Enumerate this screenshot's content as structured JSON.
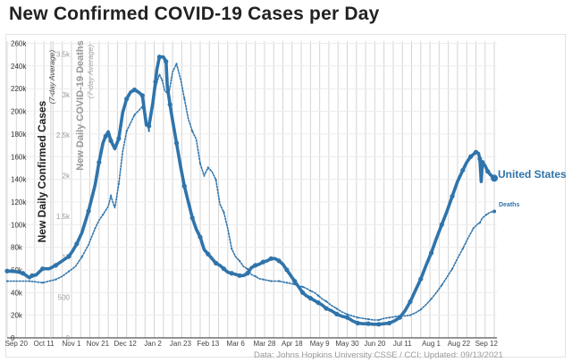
{
  "page": {
    "title": "New Confirmed COVID-19 Cases per Day"
  },
  "chart_data": {
    "type": "line",
    "ylabel_cases": "New Daily Confirmed Cases",
    "ylabel_cases_sub": "(7-day Average)",
    "ylabel_deaths": "New Daily COVID-19 Deaths",
    "ylabel_deaths_sub": "(7-day Average)",
    "cases_ticks": [
      {
        "v": 0,
        "label": "0"
      },
      {
        "v": 20000,
        "label": "20k"
      },
      {
        "v": 40000,
        "label": "40k"
      },
      {
        "v": 60000,
        "label": "60k"
      },
      {
        "v": 80000,
        "label": "80k"
      },
      {
        "v": 100000,
        "label": "100k"
      },
      {
        "v": 120000,
        "label": "120k"
      },
      {
        "v": 140000,
        "label": "140k"
      },
      {
        "v": 160000,
        "label": "160k"
      },
      {
        "v": 180000,
        "label": "180k"
      },
      {
        "v": 200000,
        "label": "200k"
      },
      {
        "v": 220000,
        "label": "220k"
      },
      {
        "v": 240000,
        "label": "240k"
      },
      {
        "v": 260000,
        "label": "260k"
      }
    ],
    "deaths_ticks": [
      {
        "v": 0,
        "label": "0"
      },
      {
        "v": 500,
        "label": "500"
      },
      {
        "v": 1000,
        "label": "1k"
      },
      {
        "v": 1500,
        "label": "1.5k"
      },
      {
        "v": 2000,
        "label": "2k"
      },
      {
        "v": 2500,
        "label": "2.5k"
      },
      {
        "v": 3000,
        "label": "3k"
      },
      {
        "v": 3500,
        "label": "3.5k"
      }
    ],
    "cases_ylim": [
      0,
      262000
    ],
    "deaths_ylim": [
      0,
      3660
    ],
    "x_ticks": [
      {
        "day": 0,
        "label": "Sep 20"
      },
      {
        "day": 21,
        "label": "Oct 11"
      },
      {
        "day": 42,
        "label": "Nov 1"
      },
      {
        "day": 62,
        "label": "Nov 21"
      },
      {
        "day": 83,
        "label": "Dec 12"
      },
      {
        "day": 104,
        "label": "Jan 2"
      },
      {
        "day": 125,
        "label": "Jan 23"
      },
      {
        "day": 146,
        "label": "Feb 13"
      },
      {
        "day": 167,
        "label": "Mar 6"
      },
      {
        "day": 189,
        "label": "Mar 28"
      },
      {
        "day": 210,
        "label": "Apr 18"
      },
      {
        "day": 231,
        "label": "May 9"
      },
      {
        "day": 252,
        "label": "May 30"
      },
      {
        "day": 273,
        "label": "Jun 20"
      },
      {
        "day": 294,
        "label": "Jul 11"
      },
      {
        "day": 316,
        "label": "Aug 1"
      },
      {
        "day": 337,
        "label": "Aug 22"
      },
      {
        "day": 358,
        "label": "Sep 12"
      }
    ],
    "x_range": [
      -7,
      366
    ],
    "series": [
      {
        "name": "United States",
        "axis": "cases",
        "color": "#2f74ab",
        "points": [
          [
            -7,
            59000
          ],
          [
            0,
            58500
          ],
          [
            5,
            57000
          ],
          [
            10,
            53000
          ],
          [
            12,
            55000
          ],
          [
            15,
            55500
          ],
          [
            20,
            61000
          ],
          [
            25,
            61000
          ],
          [
            30,
            64000
          ],
          [
            35,
            68000
          ],
          [
            40,
            72000
          ],
          [
            43,
            77000
          ],
          [
            46,
            83000
          ],
          [
            50,
            93000
          ],
          [
            55,
            112000
          ],
          [
            60,
            135000
          ],
          [
            63,
            155000
          ],
          [
            66,
            172000
          ],
          [
            68,
            178000
          ],
          [
            70,
            182000
          ],
          [
            72,
            174000
          ],
          [
            75,
            167000
          ],
          [
            78,
            176000
          ],
          [
            81,
            199000
          ],
          [
            84,
            211000
          ],
          [
            87,
            217000
          ],
          [
            90,
            219000
          ],
          [
            93,
            217000
          ],
          [
            96,
            214000
          ],
          [
            99,
            188000
          ],
          [
            101,
            187000
          ],
          [
            104,
            208000
          ],
          [
            106,
            226000
          ],
          [
            107,
            237000
          ],
          [
            109,
            248000
          ],
          [
            112,
            248000
          ],
          [
            114,
            244000
          ],
          [
            115,
            222000
          ],
          [
            117,
            206000
          ],
          [
            119,
            192000
          ],
          [
            122,
            172000
          ],
          [
            125,
            152000
          ],
          [
            128,
            134000
          ],
          [
            131,
            120000
          ],
          [
            134,
            106000
          ],
          [
            137,
            96000
          ],
          [
            140,
            89000
          ],
          [
            143,
            78000
          ],
          [
            146,
            74000
          ],
          [
            149,
            70000
          ],
          [
            152,
            66000
          ],
          [
            155,
            64000
          ],
          [
            158,
            61000
          ],
          [
            161,
            58000
          ],
          [
            164,
            57000
          ],
          [
            167,
            56000
          ],
          [
            170,
            55000
          ],
          [
            173,
            55000
          ],
          [
            176,
            57000
          ],
          [
            179,
            62000
          ],
          [
            182,
            64000
          ],
          [
            185,
            65000
          ],
          [
            188,
            67000
          ],
          [
            191,
            68000
          ],
          [
            194,
            70000
          ],
          [
            197,
            70000
          ],
          [
            200,
            68000
          ],
          [
            203,
            65000
          ],
          [
            206,
            60000
          ],
          [
            209,
            55000
          ],
          [
            212,
            50000
          ],
          [
            215,
            45000
          ],
          [
            218,
            40000
          ],
          [
            221,
            37000
          ],
          [
            224,
            35000
          ],
          [
            227,
            33000
          ],
          [
            230,
            31000
          ],
          [
            233,
            29000
          ],
          [
            236,
            26000
          ],
          [
            240,
            24000
          ],
          [
            244,
            21000
          ],
          [
            248,
            19000
          ],
          [
            252,
            18000
          ],
          [
            256,
            15000
          ],
          [
            260,
            13000
          ],
          [
            264,
            12500
          ],
          [
            268,
            12500
          ],
          [
            272,
            12000
          ],
          [
            276,
            12000
          ],
          [
            280,
            12500
          ],
          [
            284,
            13000
          ],
          [
            288,
            15000
          ],
          [
            292,
            18000
          ],
          [
            296,
            24000
          ],
          [
            300,
            32000
          ],
          [
            304,
            42000
          ],
          [
            308,
            52000
          ],
          [
            312,
            64000
          ],
          [
            316,
            75000
          ],
          [
            320,
            88000
          ],
          [
            324,
            100000
          ],
          [
            328,
            112000
          ],
          [
            332,
            125000
          ],
          [
            336,
            138000
          ],
          [
            340,
            148000
          ],
          [
            343,
            155000
          ],
          [
            346,
            160000
          ],
          [
            348,
            162000
          ],
          [
            350,
            164000
          ],
          [
            352,
            163000
          ],
          [
            353,
            158000
          ],
          [
            354,
            138000
          ],
          [
            355,
            155000
          ],
          [
            357,
            152000
          ],
          [
            359,
            147000
          ],
          [
            361,
            144000
          ],
          [
            364,
            141000
          ]
        ]
      },
      {
        "name": "Deaths",
        "axis": "deaths",
        "color": "#2f74ab",
        "points": [
          [
            -7,
            700
          ],
          [
            0,
            700
          ],
          [
            10,
            700
          ],
          [
            15,
            690
          ],
          [
            20,
            680
          ],
          [
            25,
            700
          ],
          [
            30,
            720
          ],
          [
            35,
            760
          ],
          [
            40,
            820
          ],
          [
            45,
            880
          ],
          [
            50,
            1000
          ],
          [
            55,
            1150
          ],
          [
            60,
            1350
          ],
          [
            63,
            1450
          ],
          [
            66,
            1520
          ],
          [
            70,
            1620
          ],
          [
            72,
            1750
          ],
          [
            75,
            1600
          ],
          [
            78,
            1900
          ],
          [
            81,
            2300
          ],
          [
            84,
            2550
          ],
          [
            87,
            2650
          ],
          [
            90,
            2750
          ],
          [
            93,
            2800
          ],
          [
            96,
            2850
          ],
          [
            99,
            2700
          ],
          [
            101,
            2550
          ],
          [
            104,
            2950
          ],
          [
            107,
            3150
          ],
          [
            109,
            3250
          ],
          [
            111,
            3180
          ],
          [
            113,
            3050
          ],
          [
            116,
            3000
          ],
          [
            119,
            3280
          ],
          [
            122,
            3380
          ],
          [
            125,
            3200
          ],
          [
            128,
            2950
          ],
          [
            131,
            2700
          ],
          [
            134,
            2550
          ],
          [
            137,
            2450
          ],
          [
            140,
            2150
          ],
          [
            143,
            2000
          ],
          [
            146,
            2100
          ],
          [
            149,
            2050
          ],
          [
            152,
            1950
          ],
          [
            155,
            1650
          ],
          [
            158,
            1550
          ],
          [
            161,
            1350
          ],
          [
            164,
            1100
          ],
          [
            167,
            1000
          ],
          [
            170,
            950
          ],
          [
            173,
            880
          ],
          [
            176,
            850
          ],
          [
            179,
            780
          ],
          [
            182,
            760
          ],
          [
            185,
            730
          ],
          [
            188,
            720
          ],
          [
            191,
            710
          ],
          [
            194,
            700
          ],
          [
            197,
            700
          ],
          [
            200,
            700
          ],
          [
            203,
            690
          ],
          [
            206,
            680
          ],
          [
            209,
            670
          ],
          [
            212,
            660
          ],
          [
            215,
            640
          ],
          [
            218,
            630
          ],
          [
            221,
            610
          ],
          [
            224,
            580
          ],
          [
            227,
            560
          ],
          [
            230,
            520
          ],
          [
            233,
            480
          ],
          [
            236,
            450
          ],
          [
            240,
            400
          ],
          [
            244,
            360
          ],
          [
            248,
            320
          ],
          [
            252,
            290
          ],
          [
            256,
            270
          ],
          [
            260,
            250
          ],
          [
            264,
            240
          ],
          [
            268,
            230
          ],
          [
            272,
            220
          ],
          [
            276,
            220
          ],
          [
            280,
            240
          ],
          [
            284,
            250
          ],
          [
            288,
            260
          ],
          [
            292,
            270
          ],
          [
            296,
            270
          ],
          [
            300,
            280
          ],
          [
            304,
            310
          ],
          [
            308,
            350
          ],
          [
            312,
            410
          ],
          [
            316,
            480
          ],
          [
            320,
            560
          ],
          [
            324,
            650
          ],
          [
            328,
            750
          ],
          [
            332,
            850
          ],
          [
            336,
            980
          ],
          [
            340,
            1100
          ],
          [
            344,
            1230
          ],
          [
            348,
            1350
          ],
          [
            351,
            1400
          ],
          [
            353,
            1420
          ],
          [
            355,
            1480
          ],
          [
            358,
            1520
          ],
          [
            361,
            1550
          ],
          [
            364,
            1560
          ]
        ]
      }
    ],
    "annotations": {
      "series_label": "United States",
      "deaths_label": "Deaths",
      "source": "Data: Johns Hopkins University CSSE / CCI; Updated: 09/13/2021"
    }
  }
}
